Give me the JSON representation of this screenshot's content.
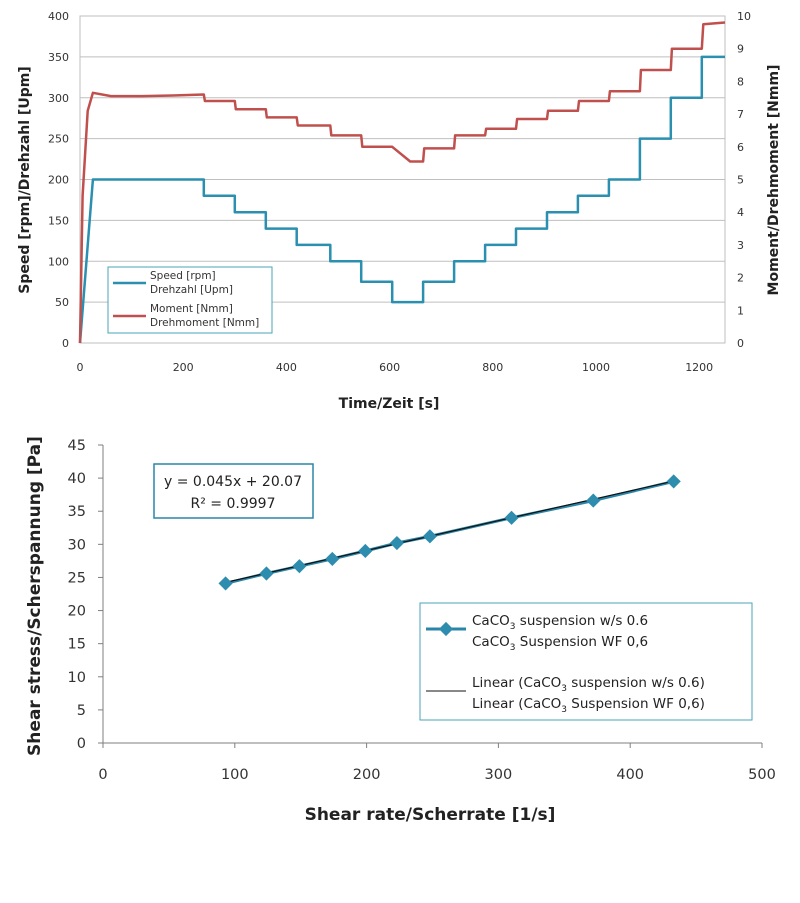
{
  "colors": {
    "speed": "#2b8fb0",
    "moment": "#c0504d",
    "series2_line": "#2a86a8",
    "series2_marker": "#2e8cae",
    "trend": "#111111",
    "legend_border": "#4aa3b8",
    "grid": "#bfbfbf"
  },
  "chart_data": [
    {
      "type": "line",
      "title": "",
      "xlabel": "Time/Zeit [s]",
      "ylabel": "Speed [rpm]/Drehzahl [Upm]",
      "y2label": "Moment/Drehmoment [Nmm]",
      "xlim": [
        0,
        1250
      ],
      "ylim": [
        0,
        400
      ],
      "y2lim": [
        0,
        10
      ],
      "xticks": [
        "0",
        "200",
        "400",
        "600",
        "800",
        "1000",
        "1200"
      ],
      "yticks": [
        "0",
        "50",
        "100",
        "150",
        "200",
        "250",
        "300",
        "350",
        "400"
      ],
      "y2ticks": [
        "0",
        "1",
        "2",
        "3",
        "4",
        "5",
        "6",
        "7",
        "8",
        "9",
        "10"
      ],
      "grid": "horizontal",
      "legend_position": "bottom-left",
      "legend": {
        "speed_line1": "Speed [rpm]",
        "speed_line2": "Drehzahl [Upm]",
        "moment_line1": "Moment [Nmm]",
        "moment_line2": "Drehmoment [Nmm]"
      },
      "series": [
        {
          "name": "Speed [rpm] Drehzahl [Upm]",
          "axis": "left",
          "x": [
            0,
            25,
            240,
            240,
            300,
            300,
            360,
            360,
            420,
            420,
            485,
            485,
            545,
            545,
            605,
            605,
            665,
            665,
            725,
            725,
            785,
            785,
            845,
            845,
            905,
            905,
            965,
            965,
            1025,
            1025,
            1085,
            1085,
            1145,
            1145,
            1205,
            1205,
            1250
          ],
          "values": [
            0,
            200,
            200,
            180,
            180,
            160,
            160,
            140,
            140,
            120,
            120,
            100,
            100,
            75,
            75,
            50,
            50,
            75,
            75,
            100,
            100,
            120,
            120,
            140,
            140,
            160,
            160,
            180,
            180,
            200,
            200,
            250,
            250,
            300,
            300,
            350,
            350
          ]
        },
        {
          "name": "Moment [Nmm] Drehmoment [Nmm]",
          "axis": "right",
          "x": [
            0,
            5,
            15,
            25,
            60,
            120,
            180,
            240,
            242,
            300,
            302,
            360,
            362,
            420,
            422,
            485,
            487,
            545,
            547,
            605,
            640,
            665,
            667,
            725,
            727,
            785,
            787,
            845,
            847,
            905,
            907,
            965,
            967,
            1025,
            1027,
            1085,
            1087,
            1145,
            1147,
            1205,
            1208,
            1250
          ],
          "values": [
            0,
            4.5,
            7.1,
            7.65,
            7.55,
            7.55,
            7.57,
            7.6,
            7.4,
            7.4,
            7.15,
            7.15,
            6.9,
            6.9,
            6.65,
            6.65,
            6.35,
            6.35,
            6.0,
            6.0,
            5.55,
            5.55,
            5.95,
            5.95,
            6.35,
            6.35,
            6.55,
            6.55,
            6.85,
            6.85,
            7.1,
            7.1,
            7.4,
            7.4,
            7.7,
            7.7,
            8.35,
            8.35,
            9.0,
            9.0,
            9.75,
            9.8
          ]
        }
      ]
    },
    {
      "type": "scatter",
      "title": "",
      "xlabel": "Shear rate/Scherrate [1/s]",
      "ylabel": "Shear stress/Scherspannung [Pa]",
      "xlim": [
        0,
        500
      ],
      "ylim": [
        0,
        45
      ],
      "xticks": [
        "0",
        "100",
        "200",
        "300",
        "400",
        "500"
      ],
      "yticks": [
        "0",
        "5",
        "10",
        "15",
        "20",
        "25",
        "30",
        "35",
        "40",
        "45"
      ],
      "grid": "none",
      "legend_position": "right",
      "equation_line1": "y = 0.045x + 20.07",
      "equation_line2": "R² = 0.9997",
      "trendline": {
        "slope": 0.045,
        "intercept": 20.07,
        "r2": 0.9997
      },
      "legend": {
        "entry1_line1_a": "CaCO",
        "entry1_line1_sub": "3",
        "entry1_line1_b": " suspension w/s 0.6",
        "entry1_line2_a": "CaCO",
        "entry1_line2_sub": "3",
        "entry1_line2_b": " Suspension WF 0,6",
        "entry2_line1_a": "Linear (CaCO",
        "entry2_line1_sub": "3",
        "entry2_line1_b": " suspension w/s 0.6)",
        "entry2_line2_a": "Linear (CaCO",
        "entry2_line2_sub": "3",
        "entry2_line2_b": " Suspension WF 0,6)"
      },
      "series": [
        {
          "name": "CaCO3 suspension w/s 0.6 / CaCO3 Suspension WF 0,6",
          "x": [
            93,
            124,
            149,
            174,
            199,
            223,
            248,
            310,
            372,
            433
          ],
          "values": [
            24.1,
            25.6,
            26.7,
            27.8,
            29.0,
            30.2,
            31.2,
            34.0,
            36.6,
            39.5
          ]
        }
      ]
    }
  ]
}
